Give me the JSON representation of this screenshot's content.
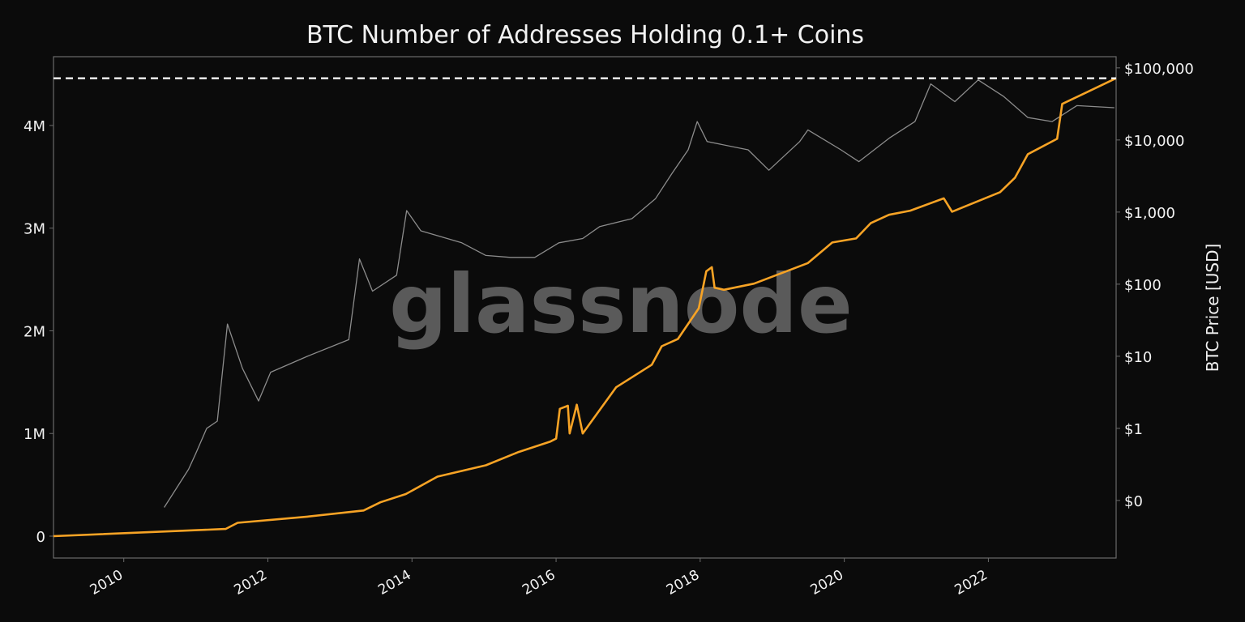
{
  "chart_data": {
    "type": "line",
    "title": "BTC Number of Addresses Holding 0.1+ Coins",
    "watermark": "glassnode",
    "xlabel": "",
    "ylabel_left": "",
    "ylabel_right": "BTC Price [USD]",
    "x_ticks": [
      "2010",
      "2012",
      "2014",
      "2016",
      "2018",
      "2020",
      "2022"
    ],
    "x_tick_years": [
      2010,
      2012,
      2014,
      2016,
      2018,
      2020,
      2022
    ],
    "xlim": [
      "2009-01-10",
      "2023-10-10"
    ],
    "y_left": {
      "ticks": [
        0,
        1000000,
        2000000,
        3000000,
        4000000
      ],
      "tick_labels": [
        "0",
        "1M",
        "2M",
        "3M",
        "4M"
      ],
      "ylim": [
        -213000,
        4670000
      ],
      "scale": "linear"
    },
    "y_right": {
      "ticks": [
        0.1,
        1,
        10,
        100,
        1000,
        10000,
        100000
      ],
      "tick_labels": [
        "$0",
        "$1",
        "$10",
        "$100",
        "$1,000",
        "$10,000",
        "$100,000"
      ],
      "ylim": [
        0.0159,
        143000
      ],
      "scale": "log"
    },
    "grid": false,
    "colors": {
      "background": "#0b0b0b",
      "addresses": "#f7a325",
      "price": "#8c8c8c",
      "ath_line": "#ffffff",
      "frame": "#6a6a6a",
      "watermark": "#5a5a5a"
    },
    "reference_line": {
      "axis": "left",
      "value": 4460000,
      "style": "dashed"
    },
    "series": [
      {
        "axis": "left",
        "color": "#f7a325",
        "points": [
          [
            "2009-01-10",
            0
          ],
          [
            "2011-06-01",
            70000
          ],
          [
            "2011-08-01",
            130000
          ],
          [
            "2012-07-20",
            190000
          ],
          [
            "2013-05-01",
            250000
          ],
          [
            "2013-07-25",
            330000
          ],
          [
            "2013-12-01",
            410000
          ],
          [
            "2014-05-10",
            580000
          ],
          [
            "2015-01-10",
            690000
          ],
          [
            "2015-06-25",
            820000
          ],
          [
            "2015-12-01",
            920000
          ],
          [
            "2016-01-01",
            950000
          ],
          [
            "2016-01-20",
            1240000
          ],
          [
            "2016-03-01",
            1270000
          ],
          [
            "2016-03-10",
            1000000
          ],
          [
            "2016-04-15",
            1280000
          ],
          [
            "2016-05-15",
            1000000
          ],
          [
            "2016-11-01",
            1450000
          ],
          [
            "2017-05-01",
            1670000
          ],
          [
            "2017-06-20",
            1850000
          ],
          [
            "2017-09-10",
            1920000
          ],
          [
            "2017-12-25",
            2220000
          ],
          [
            "2018-02-01",
            2580000
          ],
          [
            "2018-03-01",
            2620000
          ],
          [
            "2018-03-15",
            2420000
          ],
          [
            "2018-05-01",
            2400000
          ],
          [
            "2018-10-01",
            2460000
          ],
          [
            "2019-07-01",
            2660000
          ],
          [
            "2019-11-01",
            2860000
          ],
          [
            "2020-03-01",
            2900000
          ],
          [
            "2020-05-15",
            3050000
          ],
          [
            "2020-08-15",
            3130000
          ],
          [
            "2020-12-01",
            3170000
          ],
          [
            "2021-05-20",
            3290000
          ],
          [
            "2021-07-01",
            3160000
          ],
          [
            "2022-03-01",
            3350000
          ],
          [
            "2022-05-15",
            3490000
          ],
          [
            "2022-07-20",
            3720000
          ],
          [
            "2022-12-15",
            3870000
          ],
          [
            "2023-01-10",
            4210000
          ],
          [
            "2023-05-10",
            4320000
          ],
          [
            "2023-10-10",
            4460000
          ]
        ]
      },
      {
        "axis": "right",
        "color": "#8c8c8c",
        "points": [
          [
            "2010-07-25",
            0.08
          ],
          [
            "2010-11-25",
            0.27
          ],
          [
            "2011-01-01",
            0.45
          ],
          [
            "2011-02-25",
            1.0
          ],
          [
            "2011-04-20",
            1.26
          ],
          [
            "2011-06-10",
            28
          ],
          [
            "2011-08-25",
            6.8
          ],
          [
            "2011-11-15",
            2.4
          ],
          [
            "2012-01-15",
            6
          ],
          [
            "2012-07-20",
            10
          ],
          [
            "2013-02-15",
            17
          ],
          [
            "2013-04-10",
            224
          ],
          [
            "2013-06-15",
            80
          ],
          [
            "2013-10-15",
            133
          ],
          [
            "2013-12-05",
            1050
          ],
          [
            "2014-02-15",
            550
          ],
          [
            "2014-09-10",
            375
          ],
          [
            "2015-01-10",
            250
          ],
          [
            "2015-05-15",
            235
          ],
          [
            "2015-09-15",
            235
          ],
          [
            "2016-01-15",
            375
          ],
          [
            "2016-05-15",
            430
          ],
          [
            "2016-08-10",
            630
          ],
          [
            "2017-01-20",
            810
          ],
          [
            "2017-05-20",
            1540
          ],
          [
            "2017-08-10",
            3400
          ],
          [
            "2017-11-01",
            7300
          ],
          [
            "2017-12-17",
            18000
          ],
          [
            "2018-02-05",
            9500
          ],
          [
            "2018-09-01",
            7300
          ],
          [
            "2018-12-15",
            3800
          ],
          [
            "2019-05-20",
            9500
          ],
          [
            "2019-07-01",
            13800
          ],
          [
            "2019-12-15",
            7300
          ],
          [
            "2020-03-15",
            5000
          ],
          [
            "2020-08-20",
            10800
          ],
          [
            "2020-12-25",
            18000
          ],
          [
            "2021-03-15",
            60000
          ],
          [
            "2021-07-15",
            34000
          ],
          [
            "2021-11-10",
            68000
          ],
          [
            "2022-03-20",
            40000
          ],
          [
            "2022-07-20",
            20500
          ],
          [
            "2022-11-20",
            18000
          ],
          [
            "2023-03-25",
            30000
          ],
          [
            "2023-10-01",
            28000
          ]
        ]
      }
    ]
  }
}
